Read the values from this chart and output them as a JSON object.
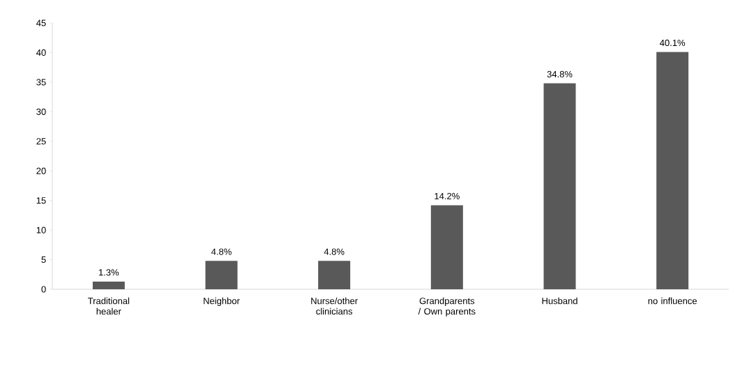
{
  "chart_data": {
    "type": "bar",
    "categories": [
      "Traditional healer",
      "Neighbor",
      "Nurse/other clinicians",
      "Grandparents / Own parents",
      "Husband",
      "no influence"
    ],
    "values": [
      1.3,
      4.8,
      4.8,
      14.2,
      34.8,
      40.1
    ],
    "value_labels": [
      "1.3%",
      "4.8%",
      "4.8%",
      "14.2%",
      "34.8%",
      "40.1%"
    ],
    "color": "#595959",
    "ylim": [
      0,
      45
    ],
    "yticks": [
      0,
      5,
      10,
      15,
      20,
      25,
      30,
      35,
      40,
      45
    ],
    "grid": false
  }
}
